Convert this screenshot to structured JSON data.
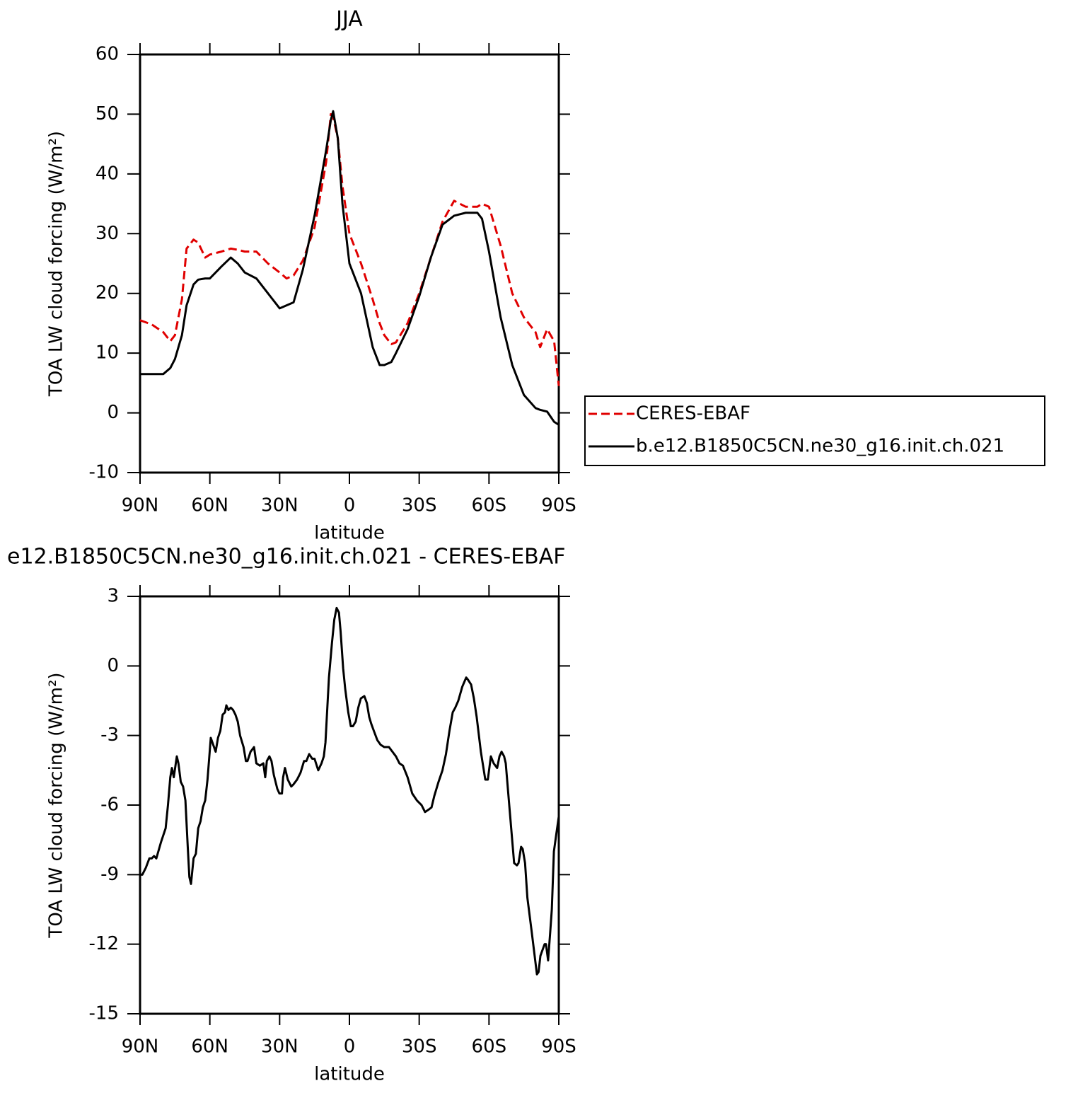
{
  "chart_data": [
    {
      "type": "line",
      "title": "JJA",
      "xlabel": "latitude",
      "ylabel": "TOA LW cloud forcing (W/m²)",
      "x": [
        90,
        85,
        80,
        77,
        75,
        72,
        70,
        67,
        65,
        62,
        60,
        55,
        51,
        48,
        45,
        40,
        35,
        30,
        27,
        24,
        20,
        15,
        10,
        8,
        7,
        5,
        3,
        0,
        -5,
        -10,
        -13,
        -15,
        -18,
        -20,
        -25,
        -30,
        -35,
        -40,
        -45,
        -50,
        -55,
        -57,
        -60,
        -65,
        -70,
        -75,
        -80,
        -82,
        -85,
        -88,
        -90
      ],
      "xlim": [
        90,
        -90
      ],
      "xticks": [
        {
          "value": 90,
          "label": "90N"
        },
        {
          "value": 60,
          "label": "60N"
        },
        {
          "value": 30,
          "label": "30N"
        },
        0,
        {
          "value": -30,
          "label": "30S"
        },
        {
          "value": -60,
          "label": "60S"
        },
        {
          "value": -90,
          "label": "90S"
        }
      ],
      "ylim": [
        -10,
        60
      ],
      "yticks": [
        -10,
        0,
        10,
        20,
        30,
        40,
        50,
        60
      ],
      "legend": "right",
      "series": [
        {
          "name": "CERES-EBAF",
          "color": "#e00000",
          "line_style": "dashed",
          "values": [
            15.5,
            14.8,
            13.5,
            12,
            13,
            19,
            27.5,
            29,
            28.5,
            26,
            26.5,
            27,
            27.5,
            27.3,
            27,
            27,
            25,
            23.5,
            22.5,
            23,
            25.5,
            31,
            42,
            50,
            49.5,
            46,
            38,
            30,
            25,
            19,
            15,
            13,
            11.5,
            11.8,
            15,
            20,
            26,
            32,
            35.5,
            34.5,
            34.5,
            35,
            34.5,
            28,
            20,
            16,
            13.5,
            11,
            14,
            12,
            4.5
          ]
        },
        {
          "name": "b.e12.B1850C5CN.ne30_g16.init.ch.021",
          "color": "#000000",
          "line_style": "solid",
          "values": [
            6.5,
            6.5,
            6.5,
            7.5,
            9,
            13,
            18,
            21.5,
            22.3,
            22.5,
            22.5,
            24.5,
            26,
            25,
            23.5,
            22.5,
            20,
            17.5,
            18,
            18.5,
            24,
            33,
            44,
            49,
            50.5,
            46,
            35,
            25,
            20,
            11,
            8,
            8,
            8.5,
            10,
            14,
            19.5,
            26,
            31.5,
            33,
            33.5,
            33.5,
            32.5,
            27,
            16,
            8,
            3,
            0.8,
            0.5,
            0.2,
            -1.5,
            -2
          ]
        }
      ]
    },
    {
      "type": "line",
      "title": "e12.B1850C5CN.ne30_g16.init.ch.021 - CERES-EBAF",
      "xlabel": "latitude",
      "ylabel": "TOA LW cloud forcing (W/m²)",
      "x": [
        90,
        89,
        87.5,
        86,
        85,
        84,
        83,
        81,
        79,
        78,
        77,
        76.3,
        75.5,
        74.2,
        73.5,
        72.5,
        71.5,
        70.5,
        69.5,
        68.8,
        68.1,
        67,
        66,
        65,
        64,
        63,
        62,
        61,
        59.6,
        57.5,
        56.5,
        55.5,
        54.5,
        53.5,
        52.9,
        52,
        51,
        50,
        49,
        48,
        47,
        45.5,
        44.5,
        43.8,
        42.5,
        41,
        40,
        38.5,
        37,
        36.2,
        35.5,
        34.4,
        33.5,
        32.5,
        31,
        30.1,
        29,
        28.5,
        27.7,
        26.5,
        25,
        24,
        22.5,
        21,
        19.5,
        18.5,
        17.3,
        16,
        15,
        13.4,
        12,
        11,
        10.3,
        9.5,
        8.8,
        7.5,
        6.5,
        5.5,
        4.5,
        3.8,
        2.7,
        1.8,
        0.5,
        -0.6,
        -1.5,
        -2.7,
        -3.8,
        -4.9,
        -6.4,
        -7.5,
        -8.5,
        -9.4,
        -10.5,
        -12,
        -13.4,
        -15,
        -17,
        -18.5,
        -20,
        -21.5,
        -23,
        -25,
        -27,
        -29,
        -31,
        -32.5,
        -34,
        -35.3,
        -36.5,
        -38.3,
        -40,
        -41.5,
        -43,
        -44.4,
        -45.5,
        -46.8,
        -48.5,
        -50.2,
        -51,
        -52.3,
        -53.5,
        -54.7,
        -56.5,
        -58.4,
        -59.5,
        -60.8,
        -62,
        -63.5,
        -64.5,
        -65.4,
        -66.5,
        -67.2,
        -68.7,
        -70.8,
        -72,
        -72.7,
        -73.8,
        -74.5,
        -75.5,
        -76.5,
        -78.4,
        -80.6,
        -81.3,
        -82.1,
        -83.9,
        -84.5,
        -85.4,
        -86.3,
        -87,
        -87.9,
        -89,
        -90
      ],
      "xlim": [
        90,
        -90
      ],
      "xticks": [
        {
          "value": 90,
          "label": "90N"
        },
        {
          "value": 60,
          "label": "60N"
        },
        {
          "value": 30,
          "label": "30N"
        },
        0,
        {
          "value": -30,
          "label": "30S"
        },
        {
          "value": -60,
          "label": "60S"
        },
        {
          "value": -90,
          "label": "90S"
        }
      ],
      "ylim": [
        -15,
        3
      ],
      "yticks": [
        -15,
        -12,
        -9,
        -6,
        -3,
        0,
        3
      ],
      "series": [
        {
          "color": "#000000",
          "line_style": "solid",
          "values": [
            -9,
            -9,
            -8.7,
            -8.3,
            -8.3,
            -8.2,
            -8.3,
            -7.6,
            -7,
            -6,
            -4.8,
            -4.4,
            -4.8,
            -3.9,
            -4.2,
            -5,
            -5.2,
            -5.8,
            -7.8,
            -9.1,
            -9.4,
            -8.3,
            -8.1,
            -7,
            -6.7,
            -6.1,
            -5.8,
            -4.9,
            -3.1,
            -3.7,
            -3.1,
            -2.8,
            -2.1,
            -2,
            -1.7,
            -1.9,
            -1.8,
            -1.9,
            -2.1,
            -2.4,
            -3,
            -3.5,
            -4.1,
            -4.1,
            -3.7,
            -3.5,
            -4.2,
            -4.3,
            -4.2,
            -4.8,
            -4.1,
            -3.9,
            -4.1,
            -4.7,
            -5.3,
            -5.5,
            -5.5,
            -4.8,
            -4.4,
            -4.9,
            -5.2,
            -5.1,
            -4.9,
            -4.6,
            -4.1,
            -4.1,
            -3.8,
            -4,
            -4,
            -4.5,
            -4.2,
            -3.9,
            -3.3,
            -1.8,
            -0.5,
            1,
            2,
            2.5,
            2.3,
            1.5,
            -0.1,
            -1,
            -2,
            -2.6,
            -2.6,
            -2.4,
            -1.8,
            -1.4,
            -1.3,
            -1.6,
            -2.2,
            -2.5,
            -2.8,
            -3.2,
            -3.4,
            -3.5,
            -3.5,
            -3.7,
            -3.9,
            -4.2,
            -4.3,
            -4.8,
            -5.5,
            -5.8,
            -6,
            -6.3,
            -6.2,
            -6.1,
            -5.6,
            -5,
            -4.5,
            -3.8,
            -2.8,
            -2,
            -1.8,
            -1.5,
            -0.9,
            -0.5,
            -0.6,
            -0.8,
            -1.4,
            -2.2,
            -3.7,
            -4.9,
            -4.9,
            -3.9,
            -4.2,
            -4.4,
            -3.9,
            -3.7,
            -3.9,
            -4.2,
            -6,
            -8.5,
            -8.6,
            -8.5,
            -7.8,
            -7.9,
            -8.5,
            -10,
            -11.5,
            -13.3,
            -13.2,
            -12.5,
            -12,
            -12,
            -12.7,
            -11.5,
            -10.5,
            -8,
            -7.2,
            -6.5
          ]
        }
      ]
    }
  ]
}
